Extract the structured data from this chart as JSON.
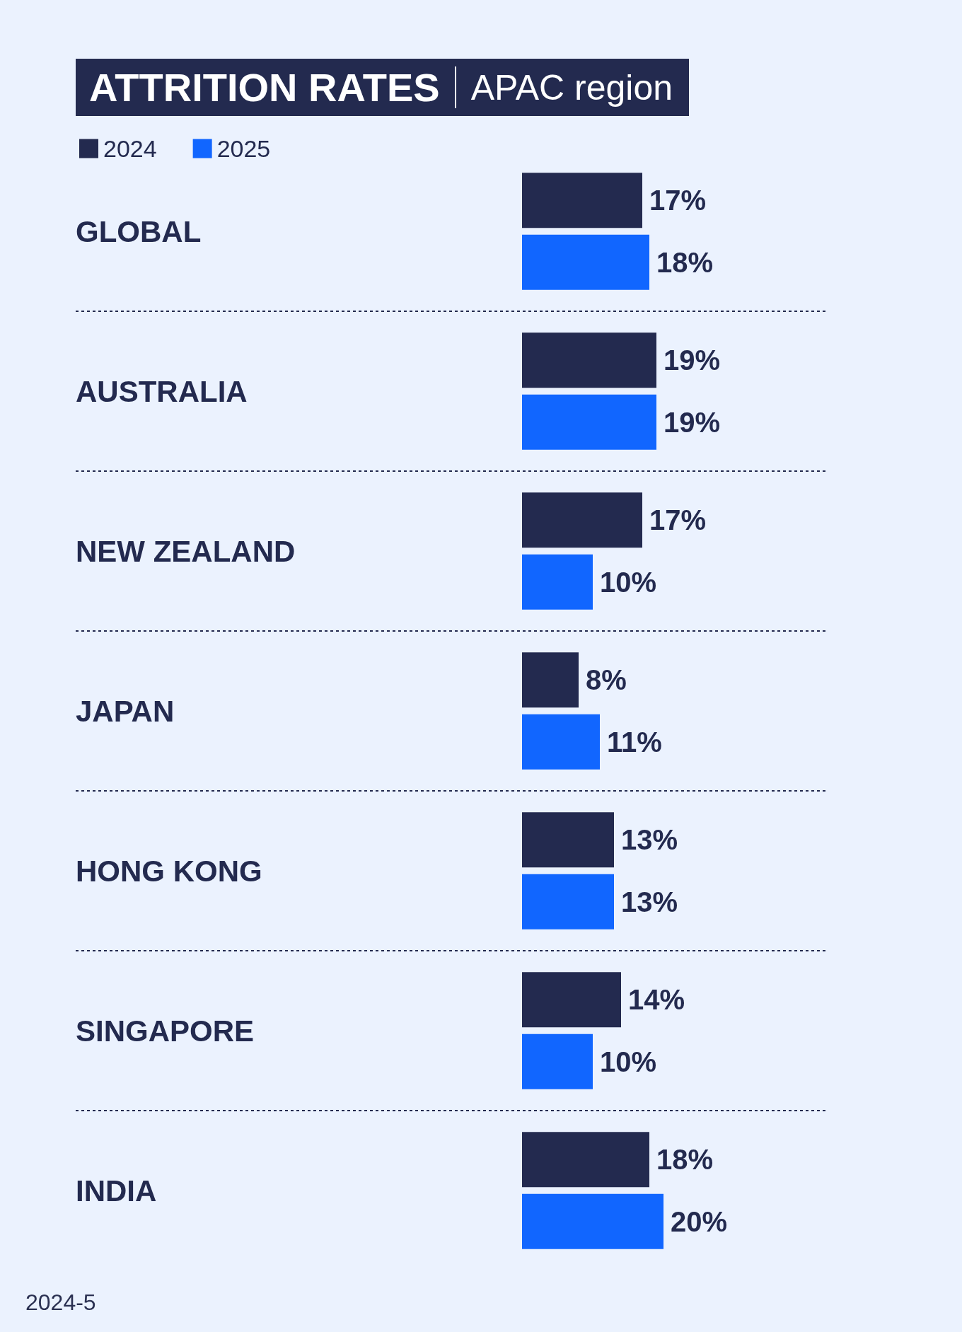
{
  "chart_data": {
    "type": "bar",
    "orientation": "horizontal",
    "title": "ATTRITION RATES",
    "subtitle": "APAC region",
    "categories": [
      "GLOBAL",
      "AUSTRALIA",
      "NEW ZEALAND",
      "JAPAN",
      "HONG KONG",
      "SINGAPORE",
      "INDIA"
    ],
    "series": [
      {
        "name": "2024",
        "color": "#232a4f",
        "values": [
          17,
          19,
          17,
          8,
          13,
          14,
          18
        ],
        "value_labels": [
          "17%",
          "19%",
          "17%",
          "8%",
          "13%",
          "14%",
          "18%"
        ]
      },
      {
        "name": "2025",
        "color": "#1166ff",
        "values": [
          18,
          19,
          10,
          11,
          13,
          10,
          20
        ],
        "value_labels": [
          "18%",
          "19%",
          "10%",
          "11%",
          "13%",
          "10%",
          "20%"
        ]
      }
    ],
    "legend": "top left",
    "grid": "y",
    "annotations": [
      "2024-5"
    ]
  }
}
